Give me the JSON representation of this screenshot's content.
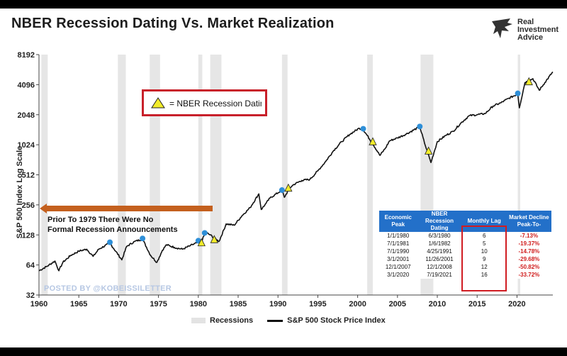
{
  "title": "NBER Recession Dating Vs. Market Realization",
  "logo": {
    "line1": "Real",
    "line2": "Investment",
    "line3": "Advice"
  },
  "legend_box": {
    "symbol": "triangle-icon",
    "text": "= NBER Recession Datin"
  },
  "prior_note": {
    "line1": "Prior To 1979 There Were No",
    "line2": "Formal Recession Announcements"
  },
  "watermark": "POSTED BY @KOBEISSILETTER",
  "bottom_legend": {
    "recessions": "Recessions",
    "series": "S&P 500 Stock Price Index"
  },
  "colors": {
    "accent_red": "#c8202a",
    "table_blue": "#2370c9",
    "marker_blue": "#2e8fd8",
    "marker_yellow": "#f2ec2a",
    "arrow_orange": "#c4601e"
  },
  "lag_table": {
    "headers": [
      "Economic Peak",
      "NBER Recession Dating",
      "Monthly Lag",
      "Market Decline Peak-To-"
    ],
    "rows": [
      [
        "1/1/1980",
        "6/3/1980",
        "6",
        "-7.13%"
      ],
      [
        "7/1/1981",
        "1/6/1982",
        "5",
        "-19.37%"
      ],
      [
        "7/1/1990",
        "4/25/1991",
        "10",
        "-14.78%"
      ],
      [
        "3/1/2001",
        "11/26/2001",
        "9",
        "-29.68%"
      ],
      [
        "12/1/2007",
        "12/1/2008",
        "12",
        "-50.82%"
      ],
      [
        "3/1/2020",
        "7/19/2021",
        "16",
        "-33.72%"
      ]
    ]
  },
  "chart_data": {
    "type": "line",
    "title": "NBER Recession Dating Vs. Market Realization",
    "xlabel": "",
    "ylabel": "S&P 500 Index Log Scale",
    "y_scale": "log2",
    "ylim": [
      32,
      8192
    ],
    "xlim": [
      1960,
      2024.5
    ],
    "x_ticks": [
      1960,
      1965,
      1970,
      1975,
      1980,
      1985,
      1990,
      1995,
      2000,
      2005,
      2010,
      2015,
      2020
    ],
    "x_tick_labels": [
      "1960",
      "1965",
      "1970",
      "1975",
      "1980",
      "1985",
      "1990",
      "1995",
      "2000",
      "2005",
      "2010",
      "2015",
      "2020"
    ],
    "y_ticks": [
      32,
      64,
      128,
      256,
      512,
      1024,
      2048,
      4096,
      8192
    ],
    "y_tick_labels": [
      "32",
      "64",
      "128",
      "256",
      "512",
      "1024",
      "2048",
      "4096",
      "8192"
    ],
    "recessions": [
      [
        1960.3,
        1961.1
      ],
      [
        1969.9,
        1970.9
      ],
      [
        1973.9,
        1975.2
      ],
      [
        1980.0,
        1980.5
      ],
      [
        1981.5,
        1982.9
      ],
      [
        1990.5,
        1991.2
      ],
      [
        2001.2,
        2001.9
      ],
      [
        2007.9,
        2009.5
      ],
      [
        2020.1,
        2020.4
      ]
    ],
    "series": [
      {
        "name": "S&P 500 Stock Price Index",
        "x": [
          1960,
          1961,
          1962,
          1962.5,
          1963,
          1964,
          1965,
          1966,
          1966.8,
          1967.5,
          1968.9,
          1970.4,
          1971,
          1972,
          1973,
          1974,
          1974.8,
          1975.5,
          1976,
          1977,
          1978,
          1979,
          1980,
          1980.3,
          1980.9,
          1981.5,
          1982.6,
          1983.5,
          1984.5,
          1985.5,
          1986.5,
          1987.6,
          1987.9,
          1988.5,
          1989,
          1990.5,
          1990.8,
          1991.5,
          1992,
          1993,
          1994,
          1995,
          1996,
          1997,
          1998,
          1999,
          2000.2,
          2000.7,
          2001.8,
          2002.8,
          2003.5,
          2004,
          2005,
          2006,
          2007.8,
          2008.5,
          2009.2,
          2010,
          2011,
          2012,
          2013,
          2014,
          2015,
          2016,
          2017,
          2018,
          2019,
          2020.1,
          2020.3,
          2021,
          2022,
          2022.8,
          2023.5,
          2024.5
        ],
        "values": [
          56,
          62,
          70,
          56,
          68,
          80,
          88,
          92,
          78,
          92,
          106,
          72,
          98,
          110,
          116,
          80,
          68,
          90,
          102,
          96,
          92,
          100,
          108,
          105,
          136,
          128,
          110,
          165,
          160,
          200,
          240,
          330,
          230,
          265,
          300,
          360,
          305,
          380,
          410,
          450,
          460,
          560,
          700,
          900,
          1100,
          1300,
          1500,
          1450,
          1080,
          800,
          950,
          1120,
          1200,
          1300,
          1550,
          1000,
          680,
          1100,
          1260,
          1400,
          1700,
          2000,
          2050,
          2100,
          2500,
          2700,
          3000,
          3300,
          2400,
          4300,
          4700,
          3600,
          4300,
          5500
        ]
      }
    ],
    "markers_blue_peaks": [
      [
        1968.9,
        108
      ],
      [
        1973.0,
        118
      ],
      [
        1980.0,
        112
      ],
      [
        1980.8,
        134
      ],
      [
        1990.5,
        360
      ],
      [
        2000.7,
        1480
      ],
      [
        2007.8,
        1560
      ],
      [
        2020.1,
        3350
      ]
    ],
    "markers_yellow_nber": [
      [
        1980.4,
        106
      ],
      [
        1982.0,
        114
      ],
      [
        1991.3,
        374
      ],
      [
        2001.9,
        1090
      ],
      [
        2008.9,
        880
      ],
      [
        2021.5,
        4350
      ]
    ]
  }
}
